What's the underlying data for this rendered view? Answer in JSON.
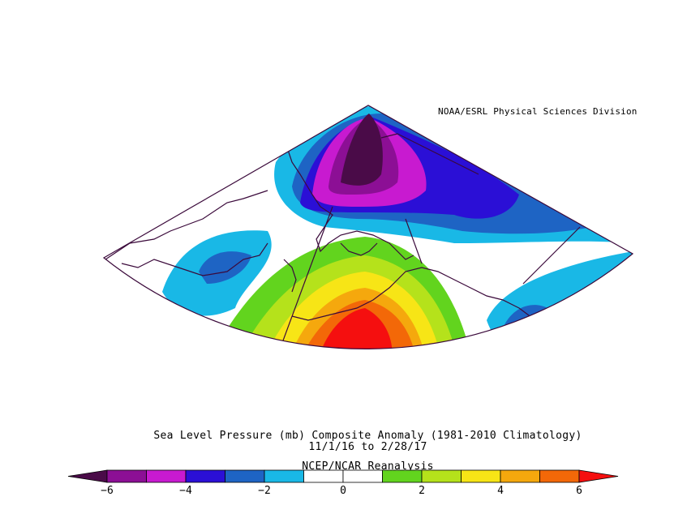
{
  "credit": "NOAA/ESRL Physical Sciences Division",
  "title": {
    "line1": "Sea Level Pressure (mb) Composite Anomaly (1981-2010 Climatology)",
    "line2": "11/1/16  to 2/28/17",
    "line3": "NCEP/NCAR Reanalysis"
  },
  "colorbar": {
    "levels": [
      -6,
      -5,
      -4,
      -3,
      -2,
      -1,
      0,
      1,
      2,
      3,
      4,
      5,
      6
    ],
    "colors": [
      "#4a0b48",
      "#8c0f95",
      "#c81ad0",
      "#2b0fd6",
      "#1e64c4",
      "#19b8e6",
      "#ffffff",
      "#ffffff",
      "#62d41e",
      "#b5e21b",
      "#f7e516",
      "#f5a80d",
      "#f36808",
      "#f50f0f"
    ],
    "tick_labels": [
      "-6",
      "-4",
      "-2",
      "0",
      "2",
      "4",
      "6"
    ]
  },
  "colors": {
    "boundary": "#3b0a3b",
    "coast": "#3b0a3b"
  }
}
